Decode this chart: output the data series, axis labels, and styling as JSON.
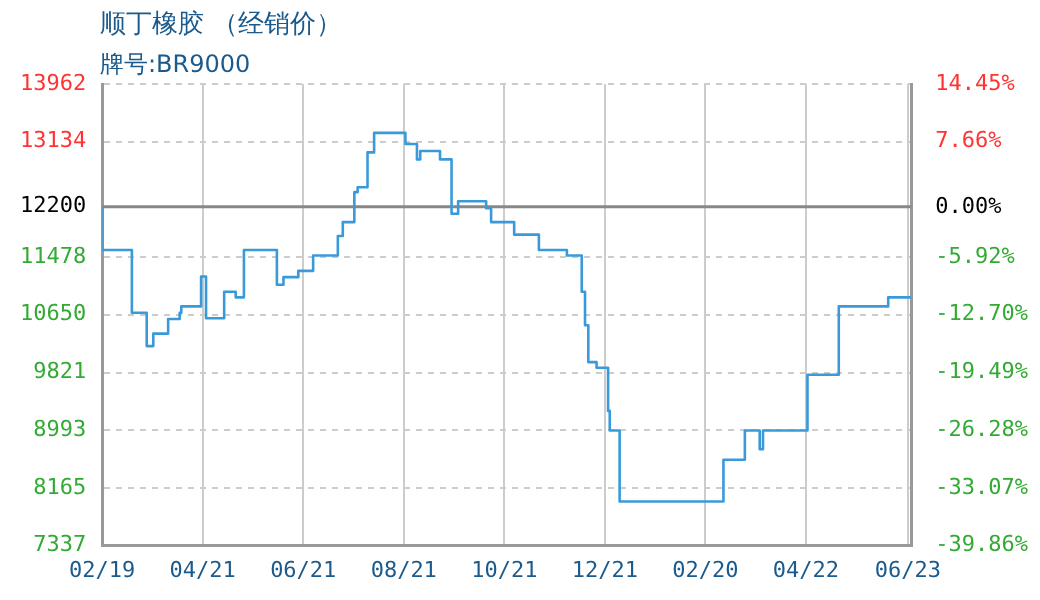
{
  "chart_data": {
    "type": "step",
    "title": "顺丁橡胶 （经销价）",
    "subtitle": "牌号:BR9000",
    "categories": [
      "02/19",
      null,
      null,
      null,
      null,
      null,
      null,
      null,
      null,
      null,
      null,
      null,
      null,
      null,
      null,
      null,
      null,
      null,
      null,
      null,
      null,
      null,
      null,
      null,
      null,
      null,
      null,
      null,
      null,
      null,
      null,
      null,
      null,
      null,
      null,
      null,
      null,
      null,
      null,
      null,
      null,
      null,
      null,
      null,
      null,
      null,
      null,
      null,
      null,
      null,
      null,
      null,
      null,
      null,
      null,
      null,
      null,
      null,
      null,
      null,
      null,
      "04/21",
      null,
      null,
      null,
      null,
      null,
      null,
      null,
      null,
      null,
      null,
      null,
      null,
      null,
      null,
      null,
      null,
      null,
      null,
      null,
      null,
      null,
      null,
      null,
      null,
      null,
      null,
      null,
      null,
      null,
      null,
      null,
      null,
      null,
      null,
      null,
      null,
      null,
      null,
      null,
      null,
      null,
      null,
      null,
      null,
      null,
      null,
      null,
      null,
      null,
      null,
      null,
      null,
      null,
      null,
      null,
      null,
      null,
      null,
      null,
      null,
      "06/21",
      null,
      null,
      null,
      null,
      null,
      null,
      null,
      null,
      null,
      null,
      null,
      null,
      null,
      null,
      null,
      null,
      null,
      null,
      null,
      null,
      null,
      null,
      null,
      null,
      null,
      null,
      null,
      null,
      null,
      null,
      null,
      null,
      null,
      null,
      null,
      null,
      null,
      null,
      null,
      null,
      null,
      null,
      null,
      null,
      null,
      null,
      null,
      null,
      null,
      null,
      null,
      null,
      null,
      null,
      null,
      null,
      null,
      null,
      null,
      null,
      "08/21",
      null,
      null,
      null,
      null,
      null,
      null,
      null,
      null,
      null,
      null,
      null,
      null,
      null,
      null,
      null,
      null,
      null,
      null,
      null,
      null,
      null,
      null,
      null,
      null,
      null,
      null,
      null,
      null,
      null,
      null,
      null,
      null,
      null,
      null,
      null,
      null,
      null,
      null,
      null,
      null,
      null,
      null,
      null,
      null,
      null,
      null,
      null,
      null,
      null,
      null,
      null,
      null,
      null,
      null,
      null,
      null,
      null,
      null,
      null,
      null,
      "10/21",
      null,
      null,
      null,
      null,
      null,
      null,
      null,
      null,
      null,
      null,
      null,
      null,
      null,
      null,
      null,
      null,
      null,
      null,
      null,
      null,
      null,
      null,
      null,
      null,
      null,
      null,
      null,
      null,
      null,
      null,
      null,
      null,
      null,
      null,
      null,
      null,
      null,
      null,
      null,
      null,
      null,
      null,
      null,
      null,
      null,
      null,
      null,
      null,
      null,
      null,
      null,
      null,
      null,
      null,
      null,
      null,
      null,
      null,
      null,
      null,
      "12/21",
      null,
      null,
      null,
      null,
      null,
      null,
      null,
      null,
      null,
      null,
      null,
      null,
      null,
      null,
      null,
      null,
      null,
      null,
      null,
      null,
      null,
      null,
      null,
      null,
      null,
      null,
      null,
      null,
      null,
      null,
      null,
      null,
      null,
      null,
      null,
      null,
      null,
      null,
      null,
      null,
      null,
      null,
      null,
      null,
      null,
      null,
      null,
      null,
      null,
      null,
      null,
      null,
      null,
      null,
      null,
      null,
      null,
      null,
      null,
      null,
      "02/20",
      null,
      null,
      null,
      null,
      null,
      null,
      null,
      null,
      null,
      null,
      null,
      null,
      null,
      null,
      null,
      null,
      null,
      null,
      null,
      null,
      null,
      null,
      null,
      null,
      null,
      null,
      null,
      null,
      null,
      null,
      null,
      null,
      null,
      null,
      null,
      null,
      null,
      null,
      null,
      null,
      null,
      null,
      null,
      null,
      null,
      null,
      null,
      null,
      null,
      null,
      null,
      null,
      null,
      null,
      null,
      null,
      null,
      null,
      null,
      null,
      "04/22",
      null,
      null,
      null,
      null,
      null,
      null,
      null,
      null,
      null,
      null,
      null,
      null,
      null,
      null,
      null,
      null,
      null,
      null,
      null,
      null,
      null,
      null,
      null,
      null,
      null,
      null,
      null,
      null,
      null,
      null,
      null,
      null,
      null,
      null,
      null,
      null,
      null,
      null,
      null,
      null,
      null,
      null,
      null,
      null,
      null,
      null,
      null,
      null,
      null,
      null,
      null,
      null,
      null,
      null,
      null,
      null,
      null,
      null,
      null,
      null,
      null,
      "06/23",
      null,
      null
    ],
    "series": [
      {
        "color": "#3a9ad9",
        "values": [
          12200,
          11580,
          11580,
          11580,
          11580,
          11580,
          11580,
          11580,
          11580,
          11580,
          11580,
          11580,
          11580,
          11580,
          11580,
          11580,
          11580,
          11580,
          11580,
          10680,
          10680,
          10680,
          10680,
          10680,
          10680,
          10680,
          10680,
          10680,
          10200,
          10200,
          10200,
          10200,
          10380,
          10380,
          10380,
          10380,
          10380,
          10380,
          10380,
          10380,
          10380,
          10590,
          10590,
          10590,
          10590,
          10590,
          10590,
          10590,
          10680,
          10770,
          10770,
          10770,
          10770,
          10770,
          10770,
          10770,
          10770,
          10770,
          10770,
          10770,
          10770,
          11200,
          11200,
          11200,
          10600,
          10600,
          10600,
          10600,
          10600,
          10600,
          10600,
          10600,
          10600,
          10600,
          10600,
          10980,
          10980,
          10980,
          10980,
          10980,
          10980,
          10980,
          10900,
          10900,
          10900,
          10900,
          10900,
          11580,
          11580,
          11580,
          11580,
          11580,
          11580,
          11580,
          11580,
          11580,
          11580,
          11580,
          11580,
          11580,
          11580,
          11580,
          11580,
          11580,
          11580,
          11580,
          11580,
          11080,
          11080,
          11080,
          11080,
          11190,
          11190,
          11190,
          11190,
          11190,
          11190,
          11190,
          11190,
          11190,
          11280,
          11280,
          11280,
          11280,
          11280,
          11280,
          11280,
          11280,
          11280,
          11500,
          11500,
          11500,
          11500,
          11500,
          11500,
          11500,
          11500,
          11500,
          11500,
          11500,
          11500,
          11500,
          11500,
          11500,
          11780,
          11780,
          11780,
          11980,
          11980,
          11980,
          11980,
          11980,
          11980,
          11980,
          12410,
          12410,
          12480,
          12480,
          12480,
          12480,
          12480,
          12480,
          12980,
          12980,
          12980,
          12980,
          13260,
          13260,
          13260,
          13260,
          13260,
          13260,
          13260,
          13260,
          13260,
          13260,
          13260,
          13260,
          13260,
          13260,
          13260,
          13260,
          13260,
          13260,
          13260,
          13100,
          13100,
          13100,
          13100,
          13100,
          13100,
          13100,
          12880,
          12880,
          13000,
          13000,
          13000,
          13000,
          13000,
          13000,
          13000,
          13000,
          13000,
          13000,
          13000,
          13000,
          12880,
          12880,
          12880,
          12880,
          12880,
          12880,
          12880,
          12100,
          12100,
          12100,
          12100,
          12280,
          12280,
          12280,
          12280,
          12280,
          12280,
          12280,
          12280,
          12280,
          12280,
          12280,
          12280,
          12280,
          12280,
          12280,
          12280,
          12280,
          12180,
          12180,
          12180,
          11980,
          11980,
          11980,
          11980,
          11980,
          11980,
          11980,
          11980,
          11980,
          11980,
          11980,
          11980,
          11980,
          11980,
          11800,
          11800,
          11800,
          11800,
          11800,
          11800,
          11800,
          11800,
          11800,
          11800,
          11800,
          11800,
          11800,
          11800,
          11800,
          11580,
          11580,
          11580,
          11580,
          11580,
          11580,
          11580,
          11580,
          11580,
          11580,
          11580,
          11580,
          11580,
          11580,
          11580,
          11580,
          11580,
          11500,
          11500,
          11500,
          11500,
          11500,
          11500,
          11500,
          11500,
          11500,
          10980,
          10980,
          10500,
          10500,
          9970,
          9970,
          9970,
          9970,
          9970,
          9890,
          9890,
          9890,
          9890,
          9890,
          9890,
          9890,
          9270,
          8990,
          8990,
          8990,
          8990,
          8990,
          8990,
          7970,
          7970,
          7970,
          7970,
          7970,
          7970,
          7970,
          7970,
          7970,
          7970,
          7970,
          7970,
          7970,
          7970,
          7970,
          7970,
          7970,
          7970,
          7970,
          7970,
          7970,
          7970,
          7970,
          7970,
          7970,
          7970,
          7970,
          7970,
          7970,
          7970,
          7970,
          7970,
          7970,
          7970,
          7970,
          7970,
          7970,
          7970,
          7970,
          7970,
          7970,
          7970,
          7970,
          7970,
          7970,
          7970,
          7970,
          7970,
          7970,
          7970,
          7970,
          7970,
          7970,
          7970,
          7970,
          7970,
          7970,
          7970,
          7970,
          7970,
          7970,
          7970,
          7970,
          8570,
          8570,
          8570,
          8570,
          8570,
          8570,
          8570,
          8570,
          8570,
          8570,
          8570,
          8570,
          8570,
          8990,
          8990,
          8990,
          8990,
          8990,
          8990,
          8990,
          8990,
          8990,
          8720,
          8720,
          8990,
          8990,
          8990,
          8990,
          8990,
          8990,
          8990,
          8990,
          8990,
          8990,
          8990,
          8990,
          8990,
          8990,
          8990,
          8990,
          8990,
          8990,
          8990,
          8990,
          8990,
          8990,
          8990,
          8990,
          8990,
          8990,
          8990,
          9790,
          9790,
          9790,
          9790,
          9790,
          9790,
          9790,
          9790,
          9790,
          9790,
          9790,
          9790,
          9790,
          9790,
          9790,
          9790,
          9790,
          9790,
          9790,
          10770,
          10770,
          10770,
          10770,
          10770,
          10770,
          10770,
          10770,
          10770,
          10770,
          10770,
          10770,
          10770,
          10770,
          10770,
          10770,
          10770,
          10770,
          10770,
          10770,
          10770,
          10770,
          10770,
          10770,
          10770,
          10770,
          10770,
          10770,
          10770,
          10770,
          10900,
          10900,
          10900,
          10900,
          10900,
          10900,
          10900,
          10900,
          10900,
          10900,
          10900,
          10900,
          10900,
          10900
        ]
      }
    ],
    "ylim": [
      7337,
      13962
    ],
    "yticks": [
      7337,
      8165,
      8993,
      9821,
      10650,
      11478,
      12200,
      13134,
      13962
    ],
    "y2lim": [
      -39.86,
      14.45
    ],
    "y2ticks": [
      {
        "value": -39.86,
        "label": "-39.86%"
      },
      {
        "value": -33.07,
        "label": "-33.07%"
      },
      {
        "value": -26.28,
        "label": "-26.28%"
      },
      {
        "value": -19.49,
        "label": "-19.49%"
      },
      {
        "value": -12.7,
        "label": "-12.70%"
      },
      {
        "value": -5.92,
        "label": "-5.92%"
      },
      {
        "value": 0,
        "label": "0.00%"
      },
      {
        "value": 7.66,
        "label": "7.66%"
      },
      {
        "value": 14.45,
        "label": "14.45%"
      }
    ],
    "ref_lines": [
      {
        "axis": "y",
        "value": 12200,
        "color": "#888888"
      }
    ],
    "grid": true,
    "line_style": "solid",
    "marker": "none",
    "legend": false
  }
}
